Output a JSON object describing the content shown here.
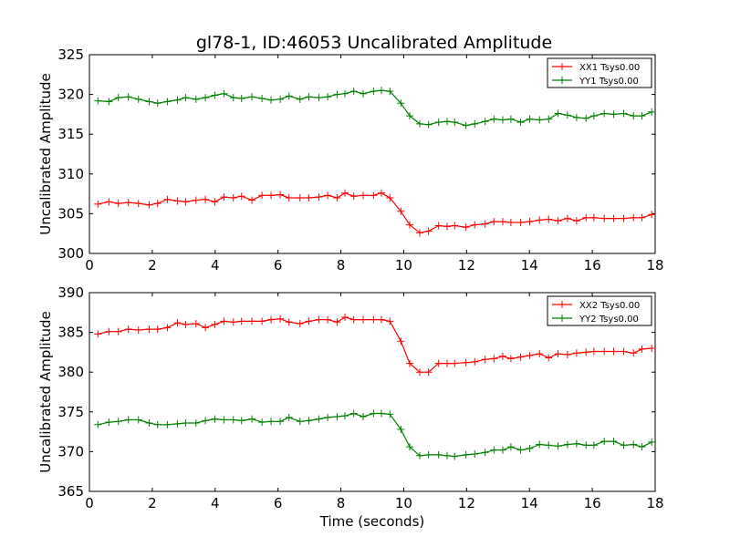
{
  "figure_title": "gl78-1, ID:46053 Uncalibrated Amplitude",
  "chart_data": [
    {
      "type": "line",
      "title": "gl78-1, ID:46053 Uncalibrated Amplitude",
      "xlabel": "",
      "ylabel": "Uncalibrated Amplitude",
      "xlim": [
        0,
        18
      ],
      "ylim": [
        300,
        325
      ],
      "xticks": [
        "0",
        "2",
        "4",
        "6",
        "8",
        "10",
        "12",
        "14",
        "16",
        "18"
      ],
      "yticks": [
        "300",
        "305",
        "310",
        "315",
        "320",
        "325"
      ],
      "legend_position": "top-right",
      "x": [
        0.27,
        0.62,
        0.92,
        1.24,
        1.56,
        1.9,
        2.17,
        2.48,
        2.8,
        3.06,
        3.39,
        3.69,
        3.99,
        4.28,
        4.58,
        4.84,
        5.17,
        5.49,
        5.78,
        6.07,
        6.35,
        6.7,
        6.98,
        7.3,
        7.58,
        7.88,
        8.13,
        8.41,
        8.71,
        9.04,
        9.29,
        9.56,
        9.91,
        10.19,
        10.51,
        10.79,
        11.11,
        11.38,
        11.62,
        11.98,
        12.26,
        12.59,
        12.87,
        13.15,
        13.41,
        13.72,
        14.01,
        14.32,
        14.61,
        14.91,
        15.21,
        15.5,
        15.8,
        16.05,
        16.38,
        16.68,
        17.0,
        17.31,
        17.58,
        17.89
      ],
      "series": [
        {
          "name": "XX1 Tsys0.00",
          "color": "#ff0000",
          "values": [
            306.2,
            306.5,
            306.3,
            306.4,
            306.3,
            306.1,
            306.3,
            306.8,
            306.6,
            306.5,
            306.7,
            306.8,
            306.5,
            307.1,
            307.0,
            307.2,
            306.7,
            307.3,
            307.3,
            307.4,
            307.0,
            307.0,
            307.0,
            307.1,
            307.3,
            307.0,
            307.6,
            307.2,
            307.3,
            307.3,
            307.6,
            307.0,
            305.3,
            303.6,
            302.6,
            302.8,
            303.5,
            303.4,
            303.5,
            303.3,
            303.6,
            303.7,
            304.0,
            304.0,
            303.9,
            303.9,
            304.0,
            304.2,
            304.3,
            304.1,
            304.4,
            304.1,
            304.5,
            304.5,
            304.4,
            304.4,
            304.4,
            304.5,
            304.5,
            304.9
          ]
        },
        {
          "name": "YY1 Tsys0.00",
          "color": "#008000",
          "values": [
            319.2,
            319.1,
            319.6,
            319.7,
            319.4,
            319.1,
            318.9,
            319.1,
            319.3,
            319.6,
            319.4,
            319.6,
            319.9,
            320.1,
            319.6,
            319.5,
            319.7,
            319.5,
            319.3,
            319.4,
            319.8,
            319.4,
            319.7,
            319.6,
            319.7,
            320.0,
            320.1,
            320.4,
            320.1,
            320.4,
            320.5,
            320.4,
            318.9,
            317.3,
            316.3,
            316.2,
            316.5,
            316.6,
            316.5,
            316.1,
            316.3,
            316.6,
            316.9,
            316.8,
            316.9,
            316.5,
            316.9,
            316.8,
            316.9,
            317.6,
            317.4,
            317.1,
            317.0,
            317.3,
            317.6,
            317.5,
            317.6,
            317.3,
            317.3,
            317.8
          ]
        }
      ]
    },
    {
      "type": "line",
      "title": "",
      "xlabel": "Time (seconds)",
      "ylabel": "Uncalibrated Amplitude",
      "xlim": [
        0,
        18
      ],
      "ylim": [
        365,
        390
      ],
      "xticks": [
        "0",
        "2",
        "4",
        "6",
        "8",
        "10",
        "12",
        "14",
        "16",
        "18"
      ],
      "yticks": [
        "365",
        "370",
        "375",
        "380",
        "385",
        "390"
      ],
      "legend_position": "top-right",
      "x": [
        0.27,
        0.62,
        0.92,
        1.24,
        1.56,
        1.9,
        2.17,
        2.48,
        2.8,
        3.06,
        3.39,
        3.69,
        3.99,
        4.28,
        4.58,
        4.84,
        5.17,
        5.49,
        5.78,
        6.07,
        6.35,
        6.7,
        6.98,
        7.3,
        7.58,
        7.88,
        8.13,
        8.41,
        8.71,
        9.04,
        9.29,
        9.56,
        9.91,
        10.19,
        10.51,
        10.79,
        11.11,
        11.38,
        11.62,
        11.98,
        12.26,
        12.59,
        12.87,
        13.15,
        13.41,
        13.72,
        14.01,
        14.32,
        14.61,
        14.91,
        15.21,
        15.5,
        15.8,
        16.05,
        16.38,
        16.68,
        17.0,
        17.31,
        17.58,
        17.89
      ],
      "series": [
        {
          "name": "XX2 Tsys0.00",
          "color": "#ff0000",
          "values": [
            384.8,
            385.1,
            385.1,
            385.4,
            385.3,
            385.4,
            385.4,
            385.6,
            386.2,
            386.0,
            386.1,
            385.6,
            386.0,
            386.4,
            386.3,
            386.4,
            386.4,
            386.4,
            386.6,
            386.7,
            386.3,
            386.1,
            386.4,
            386.6,
            386.6,
            386.3,
            386.9,
            386.6,
            386.6,
            386.6,
            386.6,
            386.4,
            383.9,
            381.1,
            380.0,
            380.0,
            381.1,
            381.1,
            381.1,
            381.2,
            381.3,
            381.6,
            381.7,
            382.0,
            381.7,
            381.9,
            382.1,
            382.3,
            381.8,
            382.3,
            382.2,
            382.4,
            382.5,
            382.6,
            382.6,
            382.6,
            382.6,
            382.4,
            382.9,
            383.0
          ]
        },
        {
          "name": "YY2 Tsys0.00",
          "color": "#008000",
          "values": [
            373.4,
            373.7,
            373.8,
            374.0,
            374.0,
            373.6,
            373.4,
            373.4,
            373.5,
            373.6,
            373.6,
            373.9,
            374.1,
            374.0,
            374.0,
            373.9,
            374.1,
            373.7,
            373.8,
            373.8,
            374.3,
            373.8,
            373.9,
            374.1,
            374.3,
            374.4,
            374.5,
            374.8,
            374.4,
            374.8,
            374.8,
            374.7,
            372.8,
            370.6,
            369.5,
            369.6,
            369.6,
            369.5,
            369.4,
            369.6,
            369.7,
            369.9,
            370.2,
            370.2,
            370.6,
            370.2,
            370.4,
            370.9,
            370.8,
            370.7,
            370.9,
            371.0,
            370.8,
            370.8,
            371.3,
            371.3,
            370.8,
            370.9,
            370.6,
            371.2
          ]
        }
      ]
    }
  ]
}
